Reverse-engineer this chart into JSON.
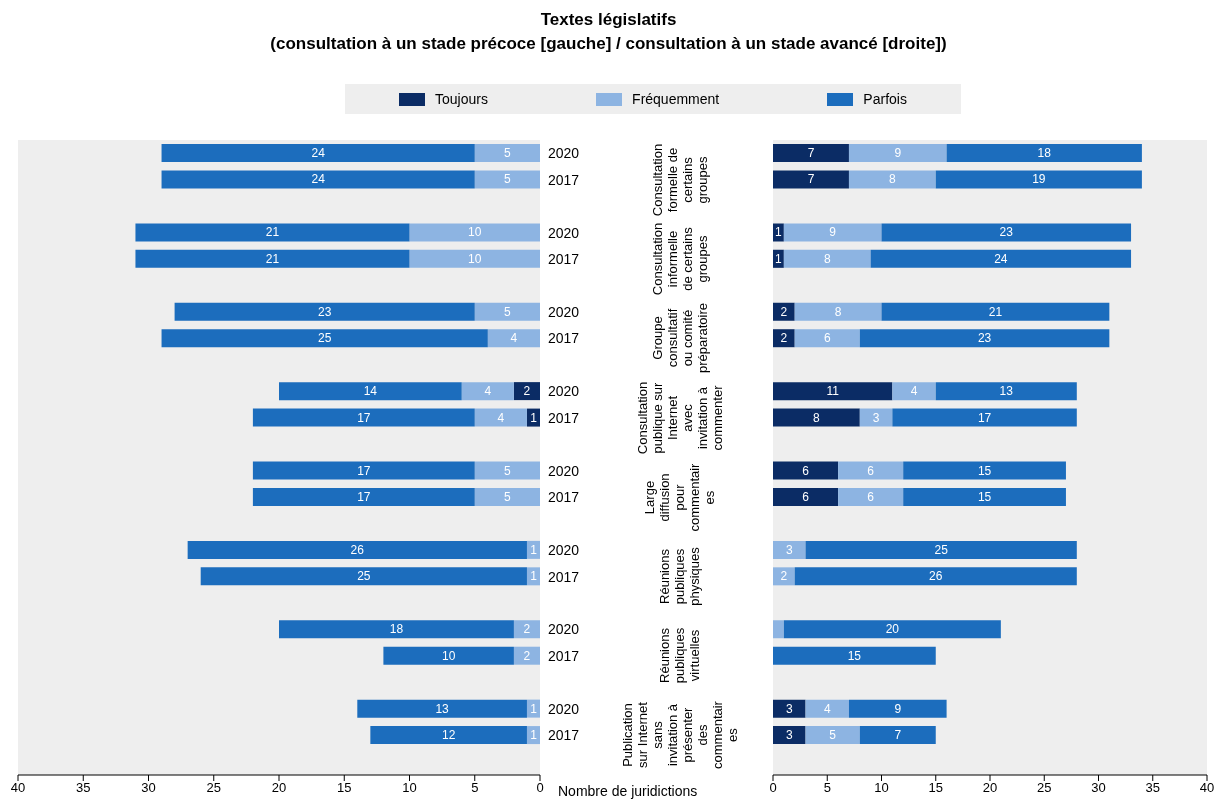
{
  "chart_data": [
    {
      "type": "bar",
      "orientation": "horizontal",
      "stacked": true,
      "title": "Textes législatifs",
      "subtitle": "(consultation à un stade précoce [gauche] / consultation à un stade avancé [droite])",
      "xlabel": "Nombre de juridictions",
      "categories": [
        "2020",
        "2017",
        null,
        "2020",
        "2017",
        null,
        "2020",
        "2017",
        null,
        "2020",
        "2017",
        null,
        "2020",
        "2017",
        null,
        "2020",
        "2017",
        null,
        "2020",
        "2017",
        null,
        "2020",
        "2017",
        null
      ],
      "series": [
        {
          "name": "Toujours",
          "color": "#0b2c65",
          "values": [
            null,
            null,
            null,
            null,
            null,
            null,
            null,
            null,
            null,
            2,
            1,
            null,
            null,
            null,
            null,
            null,
            null,
            null,
            null,
            null,
            null,
            null,
            null,
            null
          ]
        },
        {
          "name": "Fréquemment",
          "color": "#8db4e2",
          "values": [
            5,
            5,
            null,
            10,
            10,
            null,
            5,
            4,
            null,
            4,
            4,
            null,
            5,
            5,
            null,
            1,
            1,
            null,
            2,
            2,
            null,
            1,
            1,
            null
          ]
        },
        {
          "name": "Parfois",
          "color": "#1c6dbd",
          "values": [
            24,
            24,
            null,
            21,
            21,
            null,
            23,
            25,
            null,
            14,
            17,
            null,
            17,
            17,
            null,
            26,
            25,
            null,
            18,
            10,
            null,
            13,
            12,
            null
          ]
        }
      ],
      "xlim": [
        40,
        0
      ],
      "xticks": [
        40,
        35,
        30,
        25,
        20,
        15,
        10,
        5,
        0
      ],
      "data_labels": true,
      "legend": "top",
      "grid": false,
      "annotations": [
        "Consultation formelle de certains groupes",
        "Consultation informelle de certains groupes",
        "Groupe consultatif ou comité préparatoire",
        "Consultation publique sur Internet avec invitation à commenter",
        "Large diffusion pour commentaires",
        "Réunions publiques physiques",
        "Réunions publiques virtuelles",
        "Publication sur Internet sans invitation à présenter des commentaires"
      ]
    },
    {
      "type": "bar",
      "orientation": "horizontal",
      "stacked": true,
      "categories": [
        "2020",
        "2017",
        null,
        "2020",
        "2017",
        null,
        "2020",
        "2017",
        null,
        "2020",
        "2017",
        null,
        "2020",
        "2017",
        null,
        "2020",
        "2017",
        null,
        "2020",
        "2017",
        null,
        "2020",
        "2017",
        null
      ],
      "series": [
        {
          "color": "#0b2c65",
          "values": [
            7,
            7,
            null,
            1,
            1,
            null,
            2,
            2,
            null,
            11,
            8,
            null,
            6,
            6,
            null,
            null,
            null,
            null,
            null,
            null,
            null,
            3,
            3,
            null
          ],
          "value_labels": [
            "7",
            "7",
            null,
            "1",
            "1",
            null,
            "2",
            "2",
            null,
            "11",
            "8",
            null,
            "6",
            "6",
            null,
            null,
            null,
            null,
            null,
            null,
            null,
            "3",
            "3",
            null
          ]
        },
        {
          "color": "#8db4e2",
          "values": [
            9,
            8,
            null,
            9,
            8,
            null,
            8,
            6,
            null,
            4,
            3,
            null,
            6,
            6,
            null,
            3,
            2,
            null,
            1,
            null,
            null,
            4,
            5,
            null
          ],
          "value_labels": [
            "9",
            "8",
            null,
            "9",
            "8",
            null,
            "8",
            "6",
            null,
            "4",
            "3",
            null,
            "6",
            "6",
            null,
            "3",
            "2",
            null,
            null,
            null,
            null,
            "4",
            "5",
            null
          ]
        },
        {
          "color": "#1c6dbd",
          "values": [
            18,
            19,
            null,
            23,
            24,
            null,
            21,
            23,
            null,
            13,
            17,
            null,
            15,
            15,
            null,
            25,
            26,
            null,
            20,
            15,
            null,
            9,
            7,
            null
          ],
          "value_labels": [
            "18",
            "19",
            null,
            "23",
            "24",
            null,
            "21",
            "23",
            null,
            "13",
            "17",
            null,
            "15",
            "15",
            null,
            "25",
            "26",
            null,
            "20",
            "15",
            null,
            "9",
            "7",
            null
          ]
        }
      ],
      "xlim": [
        0,
        40
      ],
      "xticks": [
        0,
        5,
        10,
        15,
        20,
        25,
        30,
        35,
        40
      ],
      "tick_labels": "x",
      "grid": false
    }
  ]
}
